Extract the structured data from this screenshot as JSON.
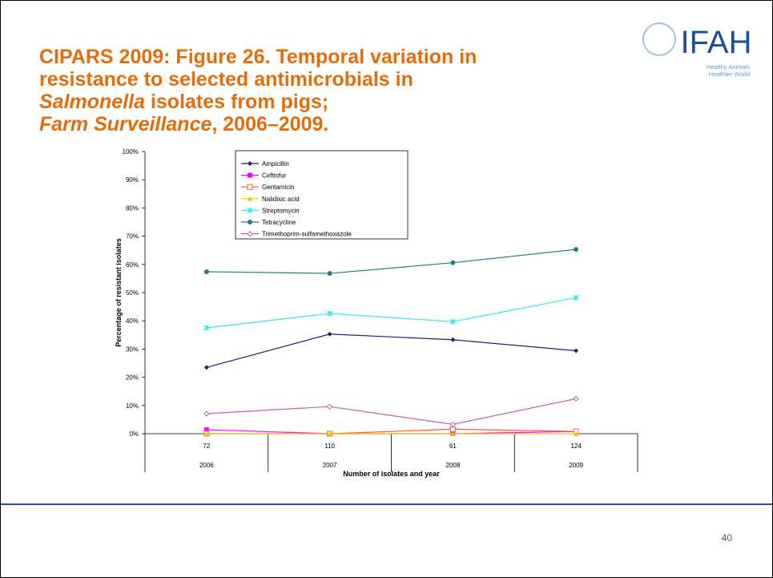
{
  "header": {
    "title_lines": [
      "CIPARS 2009: Figure 26. Temporal variation in",
      "resistance to selected antimicrobials in"
    ],
    "title_italic_1": "Salmonella",
    "title_rest_1": "isolates from pigs;",
    "title_italic_2": "Farm Surveillance",
    "title_rest_2": ", 2006–2009."
  },
  "logo": {
    "name": "IFAH",
    "tagline": [
      "Healthy Animals",
      "Healthier World"
    ]
  },
  "page_number": "40",
  "chart_data": {
    "type": "line",
    "categories": [
      "72",
      "110",
      "61",
      "124"
    ],
    "years": [
      "2006",
      "2007",
      "2008",
      "2009"
    ],
    "x_label": "Number of isolates and year",
    "y_label": "Percentage of resistant isolates",
    "ylim": [
      0,
      100
    ],
    "yticks": [
      {
        "value": 0,
        "label": "0%"
      },
      {
        "value": 10,
        "label": "10%"
      },
      {
        "value": 20,
        "label": "20%"
      },
      {
        "value": 30,
        "label": "30%"
      },
      {
        "value": 40,
        "label": "40%"
      },
      {
        "value": 50,
        "label": "50%"
      },
      {
        "value": 60,
        "label": "60%"
      },
      {
        "value": 70,
        "label": "70%"
      },
      {
        "value": 80,
        "label": "80%"
      },
      {
        "value": 90,
        "label": "90%"
      },
      {
        "value": 100,
        "label": "100%"
      }
    ],
    "series": [
      {
        "name": "Ampicillin",
        "color": "#1f1f7a",
        "marker": "diamond",
        "values": [
          23.5,
          35.3,
          33.3,
          29.4
        ]
      },
      {
        "name": "Ceftiofur",
        "color": "#ff00ff",
        "marker": "square",
        "values": [
          1.4,
          0,
          0,
          0.8
        ]
      },
      {
        "name": "Gentamicin",
        "color": "#ff5a36",
        "marker": "open-square",
        "values": [
          0,
          0,
          1.6,
          0.8
        ]
      },
      {
        "name": "Nalidixic acid",
        "color": "#f2c200",
        "marker": "triangle",
        "values": [
          0,
          0,
          0,
          0
        ]
      },
      {
        "name": "Streptomycin",
        "color": "#33e6f2",
        "marker": "star",
        "values": [
          37.5,
          42.6,
          39.7,
          48.2
        ]
      },
      {
        "name": "Tetracycline",
        "color": "#1a8080",
        "marker": "circle",
        "values": [
          57.4,
          56.8,
          60.6,
          65.3
        ]
      },
      {
        "name": "Trimethoprim-sulfamethoxazole",
        "color": "#c060c0",
        "marker": "open-diamond",
        "values": [
          7.1,
          9.6,
          3.3,
          12.4
        ]
      }
    ]
  }
}
